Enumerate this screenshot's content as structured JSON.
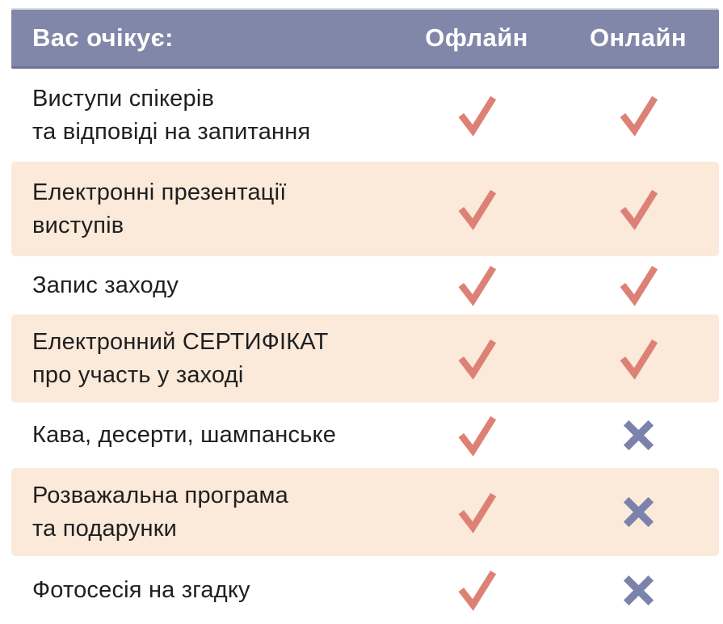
{
  "header": {
    "title": "Вас очікує:",
    "columns": [
      "Офлайн",
      "Онлайн"
    ]
  },
  "rows": [
    {
      "label": "Виступи спікерів\nта відповіді на запитання",
      "offline": "check",
      "online": "check"
    },
    {
      "label": "Електронні презентації\nвиступів",
      "offline": "check",
      "online": "check"
    },
    {
      "label": "Запис заходу",
      "offline": "check",
      "online": "check"
    },
    {
      "label": "Електронний СЕРТИФІКАТ\nпро участь у заході",
      "offline": "check",
      "online": "check"
    },
    {
      "label": "Кава, десерти, шампанське",
      "offline": "check",
      "online": "cross"
    },
    {
      "label": "Розважальна програма\nта подарунки",
      "offline": "check",
      "online": "cross"
    },
    {
      "label": "Фотосесія на згадку",
      "offline": "check",
      "online": "cross"
    }
  ],
  "icons": {
    "check": "check-icon",
    "cross": "cross-icon"
  },
  "colors": {
    "header_bg": "#8187a9",
    "header_text": "#ffffff",
    "row_shaded_bg": "#fbe9da",
    "body_text": "#1f1f1f",
    "check": "#dd8177",
    "cross": "#7b82ab"
  },
  "chart_data": {
    "type": "table",
    "title": "Вас очікує:",
    "columns": [
      "Офлайн",
      "Онлайн"
    ],
    "rows": [
      {
        "feature": "Виступи спікерів та відповіді на запитання",
        "offline": true,
        "online": true
      },
      {
        "feature": "Електронні презентації виступів",
        "offline": true,
        "online": true
      },
      {
        "feature": "Запис заходу",
        "offline": true,
        "online": true
      },
      {
        "feature": "Електронний СЕРТИФІКАТ про участь у заході",
        "offline": true,
        "online": true
      },
      {
        "feature": "Кава, десерти, шампанське",
        "offline": true,
        "online": false
      },
      {
        "feature": "Розважальна програма та подарунки",
        "offline": true,
        "online": false
      },
      {
        "feature": "Фотосесія на згадку",
        "offline": true,
        "online": false
      }
    ],
    "layout_hints": {
      "shaded_row_indices": [
        1,
        3,
        5
      ],
      "check_symbol": "✓",
      "cross_symbol": "✖"
    }
  }
}
